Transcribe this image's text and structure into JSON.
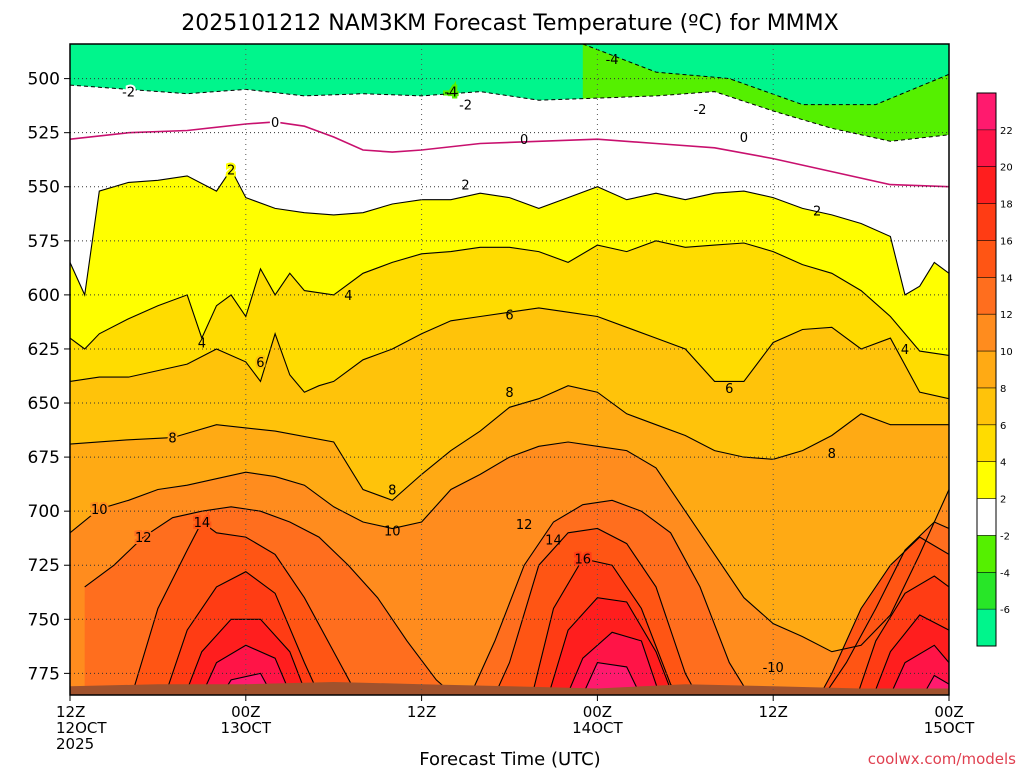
{
  "chart_data": {
    "type": "heatmap",
    "title": "2025101212 NAM3KM Forecast Temperature (ºC) for MMMX",
    "xlabel": "Forecast Time (UTC)",
    "ylabel": "",
    "credit": "coolwx.com/models",
    "x_ticks": [
      {
        "hour": 0,
        "lines": [
          "12Z",
          "12OCT",
          "2025"
        ]
      },
      {
        "hour": 12,
        "lines": [
          "00Z",
          "13OCT"
        ]
      },
      {
        "hour": 24,
        "lines": [
          "12Z"
        ]
      },
      {
        "hour": 36,
        "lines": [
          "00Z",
          "14OCT"
        ]
      },
      {
        "hour": 48,
        "lines": [
          "12Z"
        ]
      },
      {
        "hour": 60,
        "lines": [
          "00Z",
          "15OCT"
        ]
      }
    ],
    "xlim": [
      0,
      60
    ],
    "ylim": [
      785,
      484
    ],
    "y_ticks": [
      500,
      525,
      550,
      575,
      600,
      625,
      650,
      675,
      700,
      725,
      750,
      775
    ],
    "colorbar": {
      "bands": [
        {
          "lo": 22,
          "hi": 24,
          "color": "#ff1a6e"
        },
        {
          "lo": 20,
          "hi": 22,
          "color": "#ff1447"
        },
        {
          "lo": 18,
          "hi": 20,
          "color": "#ff1e1e"
        },
        {
          "lo": 16,
          "hi": 18,
          "color": "#ff3c14"
        },
        {
          "lo": 14,
          "hi": 16,
          "color": "#ff5514"
        },
        {
          "lo": 12,
          "hi": 14,
          "color": "#ff6e1e"
        },
        {
          "lo": 10,
          "hi": 12,
          "color": "#ff8c1e"
        },
        {
          "lo": 8,
          "hi": 10,
          "color": "#ffaa14"
        },
        {
          "lo": 6,
          "hi": 8,
          "color": "#ffc30a"
        },
        {
          "lo": 4,
          "hi": 6,
          "color": "#ffdc00"
        },
        {
          "lo": 2,
          "hi": 4,
          "color": "#ffff00"
        },
        {
          "lo": -2,
          "hi": 2,
          "color": "#ffffff"
        },
        {
          "lo": -4,
          "hi": -2,
          "color": "#55f000"
        },
        {
          "lo": -6,
          "hi": -4,
          "color": "#28e628"
        },
        {
          "lo": -8,
          "hi": -6,
          "color": "#00f58c"
        }
      ],
      "labels": [
        "22",
        "20",
        "18",
        "16",
        "14",
        "12",
        "10",
        "8",
        "6",
        "4",
        "2",
        "-2",
        "-4",
        "-6"
      ]
    },
    "isotherms": [
      {
        "temp": -4,
        "label": "-4",
        "label_at": [
          26,
          506
        ],
        "x": [
          35,
          40,
          45,
          50,
          55,
          60
        ],
        "p": [
          484,
          497,
          500,
          512,
          512,
          498
        ]
      },
      {
        "temp": -2,
        "label": "-2",
        "label_at": [
          4,
          506
        ],
        "x": [
          0,
          4,
          8,
          12,
          16,
          20,
          24,
          28,
          32,
          36,
          40,
          44,
          48,
          52,
          56,
          60
        ],
        "p": [
          503,
          505,
          507,
          505,
          508,
          507,
          508,
          506,
          510,
          509,
          508,
          506,
          515,
          523,
          529,
          526
        ]
      },
      {
        "temp": 0,
        "label": "0",
        "label_at": [
          14,
          520
        ],
        "x": [
          0,
          4,
          8,
          12,
          14,
          16,
          18,
          20,
          22,
          24,
          28,
          32,
          36,
          40,
          44,
          48,
          52,
          56,
          60
        ],
        "p": [
          528,
          525,
          524,
          521,
          520,
          522,
          527,
          533,
          534,
          533,
          530,
          529,
          528,
          530,
          532,
          537,
          543,
          549,
          550
        ]
      },
      {
        "temp": 2,
        "label": "2",
        "label_at": [
          11,
          542
        ],
        "x": [
          0,
          1,
          2,
          4,
          6,
          8,
          10,
          11,
          12,
          14,
          16,
          18,
          20,
          22,
          24,
          26,
          28,
          30,
          32,
          34,
          36,
          38,
          40,
          42,
          44,
          46,
          48,
          50,
          52,
          54,
          56,
          57,
          58,
          59,
          60
        ],
        "p": [
          585,
          600,
          552,
          548,
          547,
          545,
          552,
          542,
          555,
          560,
          562,
          563,
          562,
          558,
          556,
          556,
          553,
          555,
          560,
          555,
          550,
          556,
          553,
          556,
          553,
          552,
          555,
          560,
          563,
          567,
          573,
          600,
          596,
          585,
          590
        ]
      },
      {
        "temp": 4,
        "label": "4",
        "label_at": [
          19,
          600
        ],
        "x": [
          0,
          1,
          2,
          4,
          6,
          8,
          9,
          10,
          11,
          12,
          13,
          14,
          15,
          16,
          18,
          20,
          22,
          24,
          26,
          28,
          30,
          32,
          34,
          36,
          38,
          40,
          42,
          44,
          46,
          48,
          50,
          52,
          54,
          56,
          58,
          60
        ],
        "p": [
          620,
          625,
          618,
          611,
          605,
          600,
          620,
          605,
          600,
          610,
          588,
          600,
          590,
          598,
          600,
          590,
          585,
          581,
          580,
          578,
          578,
          580,
          585,
          577,
          580,
          575,
          578,
          577,
          576,
          580,
          586,
          590,
          598,
          610,
          626,
          628
        ]
      },
      {
        "temp": 6,
        "label": "6",
        "label_at": [
          13,
          631
        ],
        "x": [
          0,
          2,
          4,
          6,
          8,
          10,
          12,
          13,
          14,
          15,
          16,
          17,
          18,
          20,
          22,
          24,
          26,
          28,
          30,
          32,
          34,
          36,
          38,
          40,
          42,
          44,
          46,
          48,
          50,
          52,
          54,
          56,
          58,
          60
        ],
        "p": [
          640,
          638,
          638,
          635,
          632,
          625,
          631,
          640,
          618,
          637,
          645,
          642,
          640,
          630,
          625,
          618,
          612,
          610,
          608,
          606,
          608,
          610,
          615,
          620,
          625,
          640,
          640,
          622,
          616,
          615,
          625,
          620,
          645,
          648
        ]
      },
      {
        "temp": 8,
        "label": "8",
        "label_at": [
          7,
          666
        ],
        "x": [
          0,
          4,
          7,
          10,
          14,
          18,
          20,
          22,
          24,
          26,
          28,
          30,
          32,
          34,
          36,
          38,
          40,
          42,
          44,
          46,
          48,
          50,
          52,
          54,
          56,
          58,
          60
        ],
        "p": [
          669,
          667,
          666,
          660,
          663,
          668,
          690,
          695,
          683,
          672,
          663,
          652,
          648,
          642,
          645,
          655,
          660,
          665,
          672,
          675,
          676,
          672,
          665,
          655,
          660,
          660,
          660
        ]
      },
      {
        "temp": 10,
        "label": "10",
        "label_at": [
          2,
          699
        ],
        "x": [
          0,
          2,
          4,
          6,
          8,
          10,
          12,
          14,
          16,
          18,
          20,
          22,
          24,
          26,
          28,
          30,
          32,
          34,
          36,
          38,
          40,
          42,
          44,
          46,
          48,
          50,
          52,
          54,
          56,
          58,
          60
        ],
        "p": [
          710,
          699,
          695,
          690,
          688,
          685,
          682,
          684,
          688,
          698,
          705,
          708,
          705,
          690,
          683,
          675,
          670,
          668,
          670,
          672,
          680,
          700,
          720,
          740,
          752,
          758,
          765,
          762,
          748,
          720,
          690
        ]
      },
      {
        "temp": 12,
        "label": "12",
        "label_at": [
          5,
          712
        ],
        "x": [
          1,
          3,
          5,
          7,
          9,
          11,
          13,
          15,
          17,
          19,
          21,
          23,
          25,
          27,
          29,
          31,
          33,
          35,
          37,
          39,
          41,
          43,
          45,
          47,
          49,
          51,
          53,
          55,
          57,
          59,
          60
        ],
        "p": [
          735,
          725,
          712,
          703,
          700,
          698,
          700,
          705,
          712,
          725,
          740,
          760,
          778,
          790,
          760,
          725,
          705,
          697,
          695,
          700,
          710,
          735,
          770,
          792,
          795,
          790,
          770,
          745,
          718,
          705,
          708
        ]
      },
      {
        "temp": 14,
        "label": "14",
        "label_at": [
          9,
          705
        ],
        "x": [
          4,
          6,
          8,
          9,
          10,
          12,
          14,
          16,
          18,
          20,
          22,
          28,
          30,
          32,
          34,
          36,
          38,
          40,
          42,
          44,
          50,
          52,
          54,
          56,
          58,
          60
        ],
        "p": [
          790,
          745,
          718,
          705,
          710,
          712,
          720,
          740,
          765,
          790,
          800,
          800,
          770,
          725,
          710,
          708,
          715,
          735,
          775,
          800,
          800,
          775,
          745,
          725,
          712,
          720
        ]
      },
      {
        "temp": 16,
        "label": "16",
        "label_at": [
          35,
          722
        ],
        "x": [
          6,
          8,
          10,
          12,
          14,
          16,
          18,
          31,
          33,
          35,
          37,
          39,
          41,
          43,
          53,
          55,
          57,
          59,
          60
        ],
        "p": [
          795,
          755,
          735,
          728,
          738,
          770,
          800,
          800,
          745,
          722,
          725,
          745,
          780,
          800,
          800,
          760,
          738,
          730,
          735
        ]
      },
      {
        "temp": 18,
        "label": "",
        "x": [
          7,
          9,
          11,
          13,
          15,
          17,
          32,
          34,
          36,
          38,
          40,
          42,
          54,
          56,
          58,
          60
        ],
        "p": [
          800,
          765,
          750,
          750,
          765,
          800,
          800,
          755,
          740,
          742,
          765,
          800,
          800,
          765,
          748,
          755
        ]
      },
      {
        "temp": 20,
        "label": "",
        "x": [
          8,
          10,
          12,
          14,
          16,
          33,
          35,
          37,
          39,
          41,
          55,
          57,
          59,
          60
        ],
        "p": [
          800,
          770,
          762,
          768,
          800,
          800,
          768,
          756,
          760,
          800,
          800,
          770,
          762,
          770
        ]
      },
      {
        "temp": 22,
        "label": "",
        "x": [
          9,
          11,
          13,
          15,
          34,
          36,
          38,
          40,
          57,
          59,
          60
        ],
        "p": [
          800,
          778,
          775,
          800,
          800,
          770,
          772,
          800,
          800,
          776,
          780
        ]
      }
    ],
    "small_labels": [
      {
        "text": "4",
        "at": [
          9,
          622
        ]
      },
      {
        "text": "2",
        "at": [
          27,
          549
        ]
      },
      {
        "text": "4",
        "at": [
          57,
          625
        ]
      },
      {
        "text": "6",
        "at": [
          30,
          609
        ]
      },
      {
        "text": "8",
        "at": [
          30,
          645
        ]
      },
      {
        "text": "12",
        "at": [
          31,
          706
        ]
      },
      {
        "text": "14",
        "at": [
          33,
          713
        ]
      },
      {
        "text": "0",
        "at": [
          31,
          528
        ]
      },
      {
        "text": "0",
        "at": [
          46,
          527
        ]
      },
      {
        "text": "-2",
        "at": [
          27,
          512
        ]
      },
      {
        "text": "-2",
        "at": [
          43,
          514
        ]
      },
      {
        "text": "2",
        "at": [
          51,
          561
        ]
      },
      {
        "text": "6",
        "at": [
          45,
          643
        ]
      },
      {
        "text": "8",
        "at": [
          52,
          673
        ]
      },
      {
        "text": "8",
        "at": [
          22,
          690
        ]
      },
      {
        "text": "10",
        "at": [
          22,
          709
        ]
      },
      {
        "text": "-4",
        "at": [
          37,
          491
        ]
      },
      {
        "text": "-10",
        "at": [
          48,
          772
        ]
      }
    ],
    "surface": {
      "color": "#a0522d",
      "p_top": [
        781,
        780,
        780,
        779,
        780,
        781,
        782,
        780,
        781,
        782,
        782
      ]
    }
  }
}
